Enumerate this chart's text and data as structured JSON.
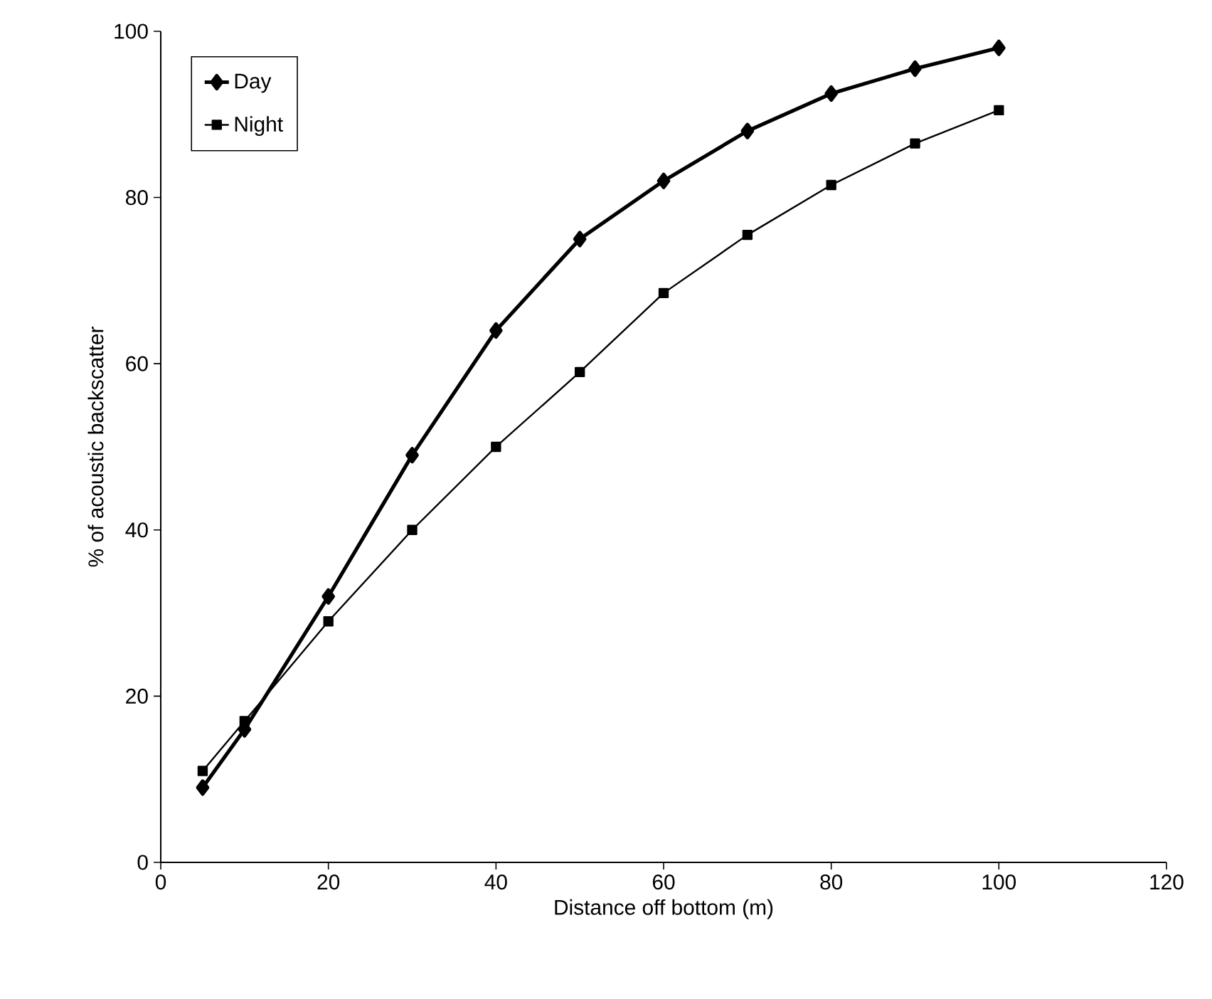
{
  "chart_data": {
    "type": "line",
    "xlabel": "Distance off bottom (m)",
    "ylabel": "% of acoustic backscatter",
    "x": [
      5,
      10,
      20,
      30,
      40,
      50,
      60,
      70,
      80,
      90,
      100
    ],
    "series": [
      {
        "name": "Day",
        "color": "#000000",
        "marker": "diamond",
        "values": [
          9,
          16,
          32,
          49,
          64,
          75,
          82,
          88,
          92.5,
          95.5,
          98
        ]
      },
      {
        "name": "Night",
        "color": "#000000",
        "marker": "square",
        "values": [
          11,
          17,
          29,
          40,
          50,
          59,
          68.5,
          75.5,
          81.5,
          86.5,
          90.5
        ]
      }
    ],
    "xlim": [
      0,
      120
    ],
    "ylim": [
      0,
      100
    ],
    "xticks": [
      0,
      20,
      40,
      60,
      80,
      100,
      120
    ],
    "yticks": [
      0,
      20,
      40,
      60,
      80,
      100
    ],
    "grid": false,
    "legend": "top left",
    "line_style": "solid"
  }
}
